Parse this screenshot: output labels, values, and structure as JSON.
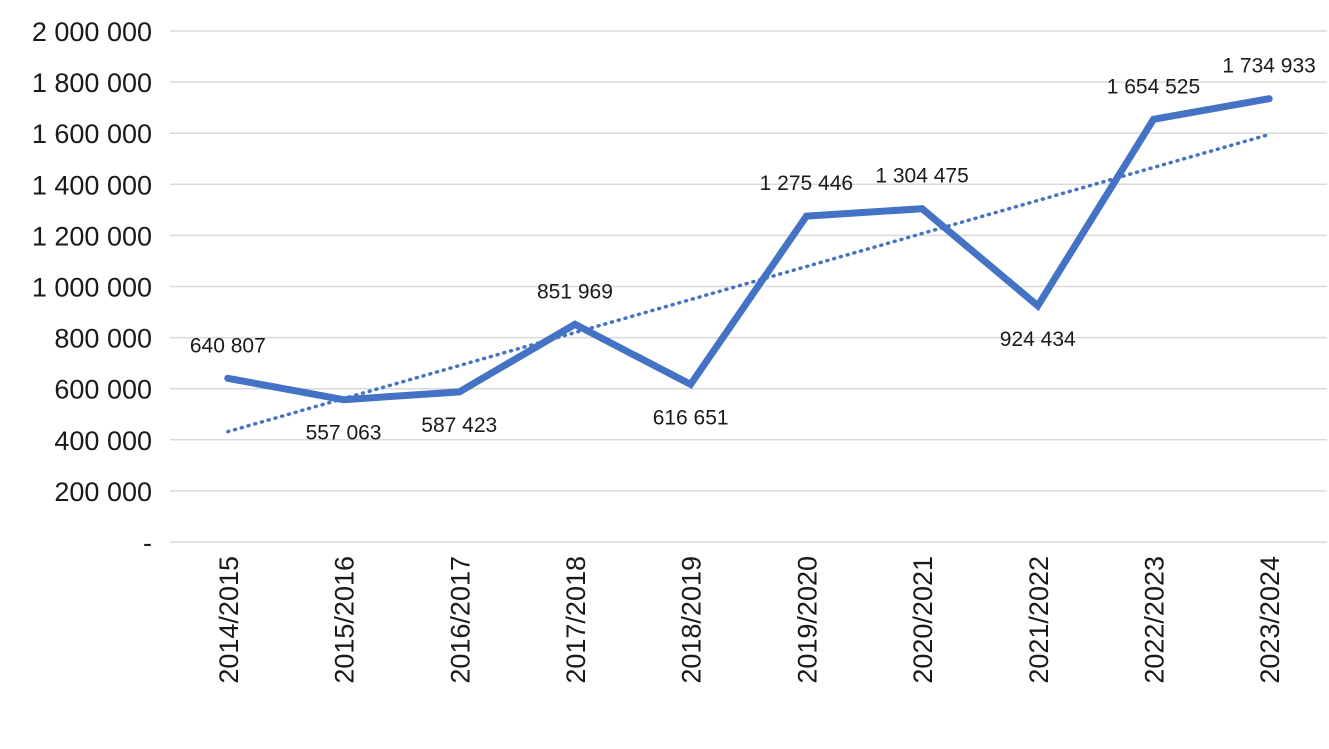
{
  "chart_data": {
    "type": "line",
    "title": "",
    "xlabel": "",
    "ylabel": "",
    "categories": [
      "2014/2015",
      "2015/2016",
      "2016/2017",
      "2017/2018",
      "2018/2019",
      "2019/2020",
      "2020/2021",
      "2021/2022",
      "2022/2023",
      "2023/2024"
    ],
    "series": [
      {
        "values": [
          640807,
          557063,
          587423,
          851969,
          616651,
          1275446,
          1304475,
          924434,
          1654525,
          1734933
        ],
        "data_labels": [
          "640 807",
          "557 063",
          "587 423",
          "851 969",
          "616 651",
          "1 275 446",
          "1 304 475",
          "924 434",
          "1 654 525",
          "1 734 933"
        ],
        "color": "#4472c4"
      }
    ],
    "trendline": {
      "type": "linear",
      "style": "dotted",
      "color": "#4472c4",
      "start": 432000,
      "end": 1595000
    },
    "ylim": [
      0,
      2000000
    ],
    "y_ticks": [
      {
        "value": 0,
        "label": "-"
      },
      {
        "value": 200000,
        "label": "200 000"
      },
      {
        "value": 400000,
        "label": "400 000"
      },
      {
        "value": 600000,
        "label": "600 000"
      },
      {
        "value": 800000,
        "label": "800 000"
      },
      {
        "value": 1000000,
        "label": "1 000 000"
      },
      {
        "value": 1200000,
        "label": "1 200 000"
      },
      {
        "value": 1400000,
        "label": "1 400 000"
      },
      {
        "value": 1600000,
        "label": "1 600 000"
      },
      {
        "value": 1800000,
        "label": "1 800 000"
      },
      {
        "value": 2000000,
        "label": "2 000 000"
      }
    ],
    "grid": true,
    "legend": "none"
  }
}
